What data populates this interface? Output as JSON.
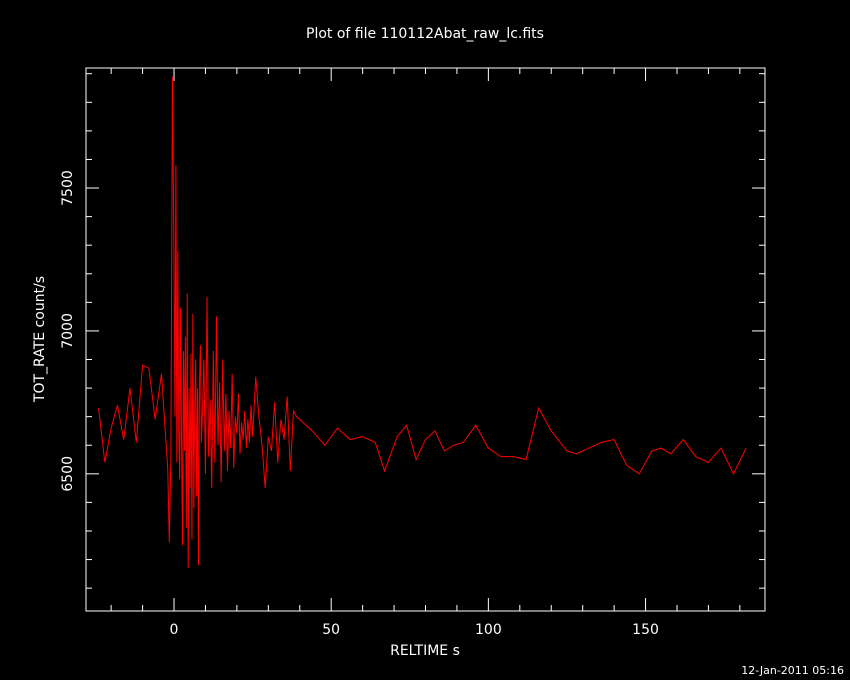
{
  "chart_data": {
    "type": "line",
    "title": "Plot of file 110112Abat_raw_lc.fits",
    "xlabel": "RELTIME  s",
    "ylabel": "TOT_RATE  count/s",
    "xlim": [
      -28,
      188
    ],
    "ylim": [
      6020,
      7920
    ],
    "x_ticks": [
      0,
      50,
      100,
      150
    ],
    "y_ticks": [
      6500,
      7000,
      7500
    ],
    "x_minor_step": 10,
    "y_minor_step": 100,
    "grid": false,
    "colors": {
      "background": "#000000",
      "axes": "#ffffff",
      "series": "#ff0000"
    },
    "series": [
      {
        "x": [
          -24,
          -22,
          -20,
          -18,
          -16,
          -14,
          -12,
          -10,
          -8,
          -6,
          -4,
          -2,
          -1.5,
          -1,
          -0.5,
          0,
          0.3,
          0.6,
          0.9,
          1.2,
          1.5,
          1.8,
          2.1,
          2.4,
          2.7,
          3,
          3.3,
          3.6,
          3.9,
          4.2,
          4.5,
          4.8,
          5.1,
          5.4,
          5.7,
          6,
          6.3,
          6.6,
          6.9,
          7.2,
          7.5,
          7.8,
          8.1,
          8.4,
          8.7,
          9,
          9.5,
          10,
          10.5,
          11,
          11.5,
          12,
          12.5,
          13,
          13.5,
          14,
          14.5,
          15,
          15.5,
          16,
          16.5,
          17,
          17.5,
          18,
          18.5,
          19,
          19.5,
          20,
          20.5,
          21,
          21.5,
          22,
          22.5,
          23,
          23.5,
          24,
          24.5,
          25,
          26,
          27,
          28,
          29,
          30,
          31,
          32,
          33,
          34,
          35,
          36,
          37,
          38,
          39,
          44,
          48,
          52,
          56,
          60,
          64,
          67,
          71,
          74,
          77,
          80,
          83,
          86,
          89,
          92,
          96,
          100,
          104,
          108,
          112,
          116,
          120,
          125,
          128,
          132,
          136,
          140,
          144,
          148,
          152,
          155,
          158,
          162,
          166,
          170,
          174,
          178,
          182
        ],
        "y": [
          6730,
          6540,
          6660,
          6740,
          6620,
          6800,
          6610,
          6880,
          6870,
          6690,
          6850,
          6520,
          6260,
          6560,
          7890,
          7230,
          6700,
          7580,
          6540,
          7280,
          6650,
          6480,
          7080,
          6610,
          6250,
          6930,
          6580,
          6980,
          6310,
          7130,
          6170,
          6800,
          6450,
          6920,
          6270,
          7060,
          6380,
          6740,
          6900,
          6420,
          6800,
          6180,
          6820,
          6950,
          6610,
          6700,
          6900,
          6500,
          7120,
          6560,
          6760,
          6450,
          6930,
          6540,
          7050,
          6600,
          6820,
          6470,
          6900,
          6580,
          6780,
          6510,
          6720,
          6590,
          6850,
          6520,
          6700,
          6640,
          6780,
          6570,
          6680,
          6620,
          6720,
          6590,
          6690,
          6610,
          6740,
          6630,
          6840,
          6700,
          6600,
          6450,
          6630,
          6580,
          6750,
          6540,
          6690,
          6620,
          6770,
          6510,
          6720,
          6700,
          6650,
          6600,
          6660,
          6620,
          6630,
          6610,
          6510,
          6630,
          6670,
          6550,
          6620,
          6650,
          6580,
          6600,
          6610,
          6670,
          6590,
          6560,
          6560,
          6550,
          6730,
          6650,
          6580,
          6570,
          6590,
          6610,
          6620,
          6530,
          6500,
          6580,
          6590,
          6570,
          6620,
          6560,
          6540,
          6590,
          6500,
          6590
        ]
      }
    ]
  },
  "footer": {
    "timestamp": "12-Jan-2011 05:16"
  }
}
